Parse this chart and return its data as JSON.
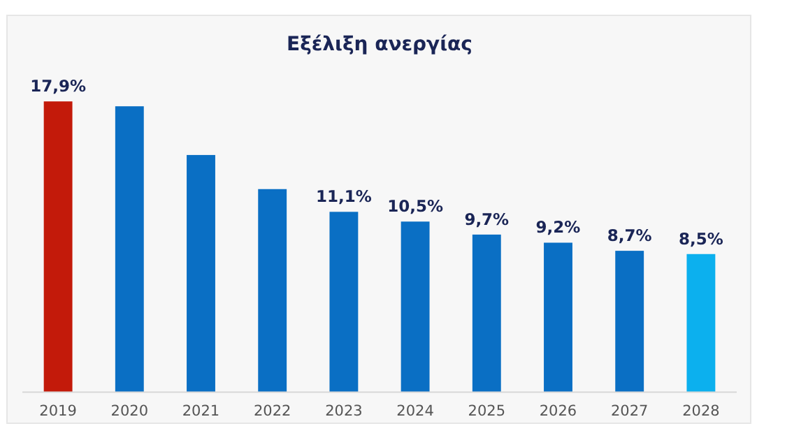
{
  "chart_data": {
    "type": "bar",
    "title": "Εξέλιξη ανεργίας",
    "categories": [
      "2019",
      "2020",
      "2021",
      "2022",
      "2023",
      "2024",
      "2025",
      "2026",
      "2027",
      "2028"
    ],
    "values": [
      17.9,
      17.6,
      14.6,
      12.5,
      11.1,
      10.5,
      9.7,
      9.2,
      8.7,
      8.5
    ],
    "colors": [
      "#c31a0a",
      "#0a6fc4",
      "#0a6fc4",
      "#0a6fc4",
      "#0a6fc4",
      "#0a6fc4",
      "#0a6fc4",
      "#0a6fc4",
      "#0a6fc4",
      "#0cb0ee"
    ],
    "value_labels": [
      "17,9%",
      null,
      null,
      null,
      "11,1%",
      "10,5%",
      "9,7%",
      "9,2%",
      "8,7%",
      "8,5%"
    ]
  }
}
